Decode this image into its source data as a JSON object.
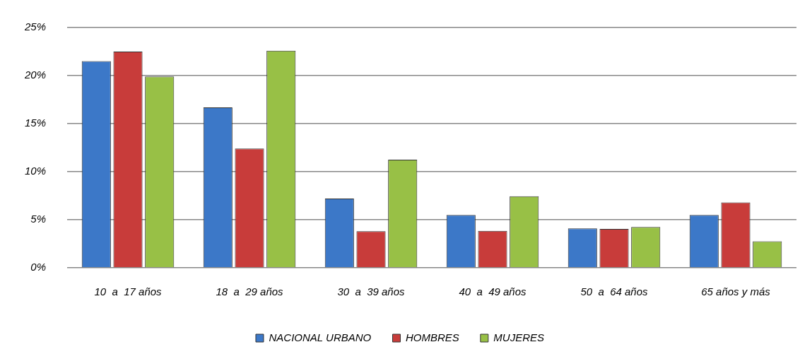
{
  "chart_data": {
    "type": "bar",
    "categories": [
      "10  a  17 años",
      "18  a  29 años",
      "30  a  39 años",
      "40  a  49 años",
      "50  a  64 años",
      "65 años y más"
    ],
    "series": [
      {
        "name": "NACIONAL URBANO",
        "color": "#3c78c8",
        "values": [
          21.5,
          16.7,
          7.2,
          5.5,
          4.1,
          5.5
        ]
      },
      {
        "name": "HOMBRES",
        "color": "#c83c3a",
        "values": [
          22.5,
          12.4,
          3.8,
          3.85,
          4.05,
          6.8
        ]
      },
      {
        "name": "MUJERES",
        "color": "#98c046",
        "values": [
          19.9,
          22.6,
          11.25,
          7.45,
          4.25,
          2.75
        ]
      }
    ],
    "ylim": [
      0,
      25
    ],
    "yticks": [
      {
        "value": 0,
        "label": "0%"
      },
      {
        "value": 5,
        "label": "5%"
      },
      {
        "value": 10,
        "label": "10%"
      },
      {
        "value": 15,
        "label": "15%"
      },
      {
        "value": 20,
        "label": "20%"
      },
      {
        "value": 25,
        "label": "25%"
      }
    ],
    "grid": "y",
    "legend": "bottom"
  }
}
